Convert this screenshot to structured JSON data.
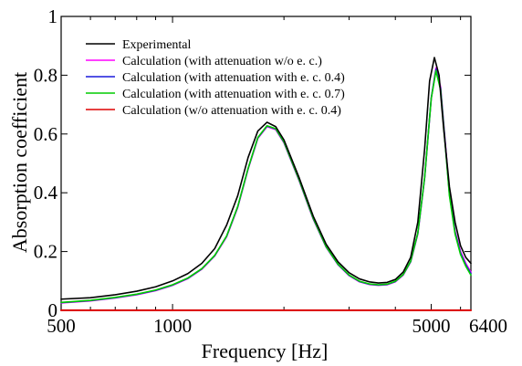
{
  "chart_data": {
    "type": "line",
    "title": "",
    "xlabel": "Frequency [Hz]",
    "ylabel": "Absorption coefficient",
    "xscale": "log",
    "xlim": [
      500,
      6400
    ],
    "ylim": [
      0,
      1
    ],
    "xticks": [
      500,
      1000,
      5000,
      6400
    ],
    "yticks": [
      0,
      0.2,
      0.4,
      0.6,
      0.8,
      1
    ],
    "grid": false,
    "legend_position": "top-left",
    "series": [
      {
        "name": "Experimental",
        "color": "#000000",
        "x": [
          500,
          600,
          700,
          800,
          900,
          1000,
          1100,
          1200,
          1300,
          1400,
          1500,
          1600,
          1700,
          1800,
          1900,
          2000,
          2200,
          2400,
          2600,
          2800,
          3000,
          3200,
          3400,
          3600,
          3800,
          4000,
          4200,
          4400,
          4600,
          4800,
          4950,
          5100,
          5250,
          5400,
          5600,
          5800,
          6000,
          6200,
          6400
        ],
        "y": [
          0.038,
          0.043,
          0.053,
          0.065,
          0.08,
          0.1,
          0.125,
          0.16,
          0.21,
          0.29,
          0.39,
          0.52,
          0.61,
          0.64,
          0.625,
          0.58,
          0.45,
          0.32,
          0.225,
          0.165,
          0.128,
          0.107,
          0.097,
          0.093,
          0.095,
          0.105,
          0.13,
          0.18,
          0.3,
          0.55,
          0.78,
          0.86,
          0.8,
          0.62,
          0.42,
          0.3,
          0.22,
          0.18,
          0.16
        ]
      },
      {
        "name": "Calculation (with attenuation w/o e. c.)",
        "color": "#ff00ff",
        "x": [
          500,
          600,
          700,
          800,
          900,
          1000,
          1100,
          1200,
          1300,
          1400,
          1500,
          1600,
          1700,
          1800,
          1900,
          2000,
          2200,
          2400,
          2600,
          2800,
          3000,
          3200,
          3400,
          3600,
          3800,
          4000,
          4200,
          4400,
          4600,
          4800,
          5000,
          5150,
          5300,
          5450,
          5600,
          5800,
          6000,
          6200,
          6400
        ],
        "y": [
          0.025,
          0.032,
          0.042,
          0.053,
          0.067,
          0.085,
          0.108,
          0.14,
          0.185,
          0.25,
          0.35,
          0.48,
          0.585,
          0.625,
          0.615,
          0.57,
          0.44,
          0.31,
          0.215,
          0.155,
          0.118,
          0.097,
          0.088,
          0.085,
          0.087,
          0.097,
          0.12,
          0.165,
          0.26,
          0.45,
          0.72,
          0.825,
          0.76,
          0.58,
          0.4,
          0.27,
          0.2,
          0.16,
          0.13
        ]
      },
      {
        "name": "Calculation (with attenuation with e. c. 0.4)",
        "color": "#1a1adb",
        "x": [
          500,
          600,
          700,
          800,
          900,
          1000,
          1100,
          1200,
          1300,
          1400,
          1500,
          1600,
          1700,
          1800,
          1900,
          2000,
          2200,
          2400,
          2600,
          2800,
          3000,
          3200,
          3400,
          3600,
          3800,
          4000,
          4200,
          4400,
          4600,
          4800,
          5000,
          5150,
          5300,
          5450,
          5600,
          5800,
          6000,
          6200,
          6400
        ],
        "y": [
          0.026,
          0.033,
          0.043,
          0.054,
          0.068,
          0.086,
          0.109,
          0.141,
          0.186,
          0.252,
          0.352,
          0.482,
          0.587,
          0.627,
          0.617,
          0.572,
          0.442,
          0.312,
          0.216,
          0.156,
          0.119,
          0.098,
          0.089,
          0.086,
          0.088,
          0.098,
          0.121,
          0.166,
          0.262,
          0.452,
          0.722,
          0.82,
          0.755,
          0.575,
          0.395,
          0.265,
          0.195,
          0.155,
          0.125
        ]
      },
      {
        "name": "Calculation (with attenuation with e. c. 0.7)",
        "color": "#00cc00",
        "x": [
          500,
          600,
          700,
          800,
          900,
          1000,
          1100,
          1200,
          1300,
          1400,
          1500,
          1600,
          1700,
          1800,
          1900,
          2000,
          2200,
          2400,
          2600,
          2800,
          3000,
          3200,
          3400,
          3600,
          3800,
          4000,
          4200,
          4400,
          4600,
          4800,
          5000,
          5150,
          5300,
          5450,
          5600,
          5800,
          6000,
          6200,
          6400
        ],
        "y": [
          0.027,
          0.034,
          0.044,
          0.055,
          0.069,
          0.087,
          0.11,
          0.142,
          0.187,
          0.253,
          0.353,
          0.483,
          0.588,
          0.628,
          0.618,
          0.573,
          0.443,
          0.313,
          0.217,
          0.157,
          0.12,
          0.099,
          0.09,
          0.087,
          0.089,
          0.099,
          0.122,
          0.167,
          0.263,
          0.453,
          0.72,
          0.815,
          0.75,
          0.57,
          0.39,
          0.26,
          0.19,
          0.15,
          0.12
        ]
      },
      {
        "name": "Calculation (w/o attenuation with e. c. 0.4)",
        "color": "#dd0000",
        "x": [
          500,
          1000,
          2000,
          3000,
          4000,
          5000,
          6400
        ],
        "y": [
          0,
          0,
          0,
          0,
          0,
          0,
          0
        ]
      }
    ]
  }
}
